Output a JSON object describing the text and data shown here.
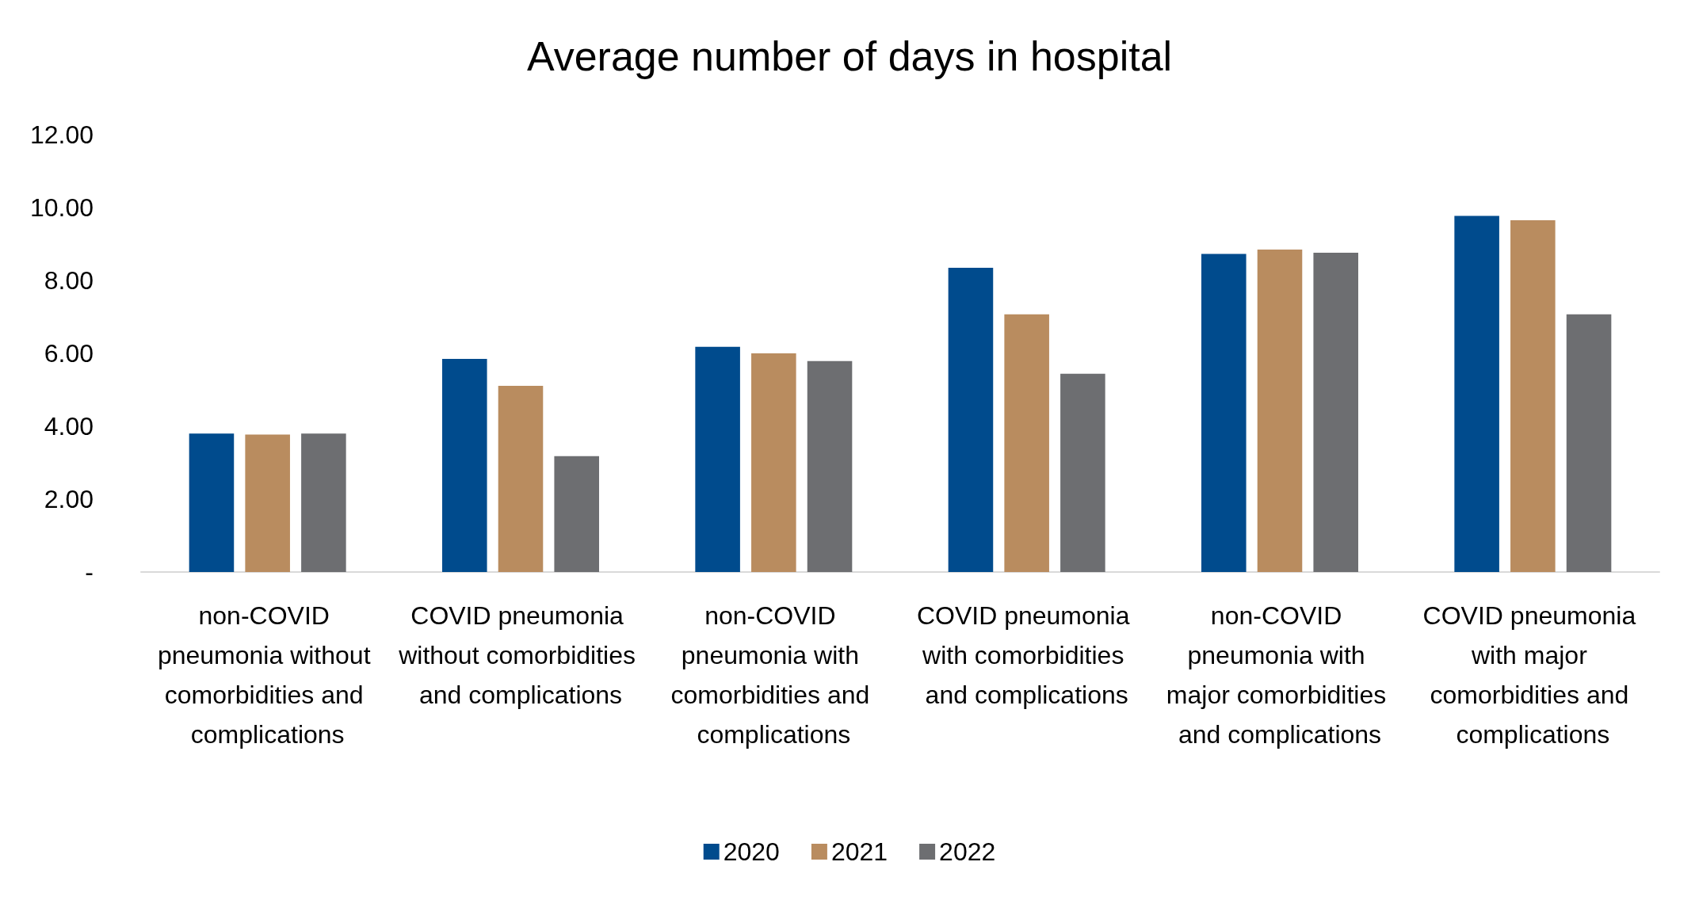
{
  "chart_data": {
    "type": "bar",
    "title": "Average number of days in hospital",
    "categories": [
      "non-COVID pneumonia without comorbidities and complications",
      "COVID pneumonia without comorbidities and complications",
      "non-COVID pneumonia with comorbidities and complications",
      "COVID pneumonia with comorbidities and complications",
      "non-COVID pneumonia with major comorbidities and complications",
      "COVID pneumonia with major comorbidities and complications"
    ],
    "series": [
      {
        "name": "2020",
        "color": "#004b8d",
        "values": [
          3.8,
          5.85,
          6.18,
          8.35,
          8.73,
          9.77
        ]
      },
      {
        "name": "2021",
        "color": "#b98c5f",
        "values": [
          3.77,
          5.11,
          6.0,
          7.07,
          8.85,
          9.65
        ]
      },
      {
        "name": "2022",
        "color": "#6d6e71",
        "values": [
          3.8,
          3.18,
          5.79,
          5.44,
          8.76,
          7.07
        ]
      }
    ],
    "ylim": [
      0,
      12
    ],
    "yticks": [
      {
        "value": 0,
        "label": "-"
      },
      {
        "value": 2,
        "label": "2.00"
      },
      {
        "value": 4,
        "label": "4.00"
      },
      {
        "value": 6,
        "label": "6.00"
      },
      {
        "value": 8,
        "label": "8.00"
      },
      {
        "value": 10,
        "label": "10.00"
      },
      {
        "value": 12,
        "label": "12.00"
      }
    ],
    "grid": false,
    "legend": "bottom"
  }
}
